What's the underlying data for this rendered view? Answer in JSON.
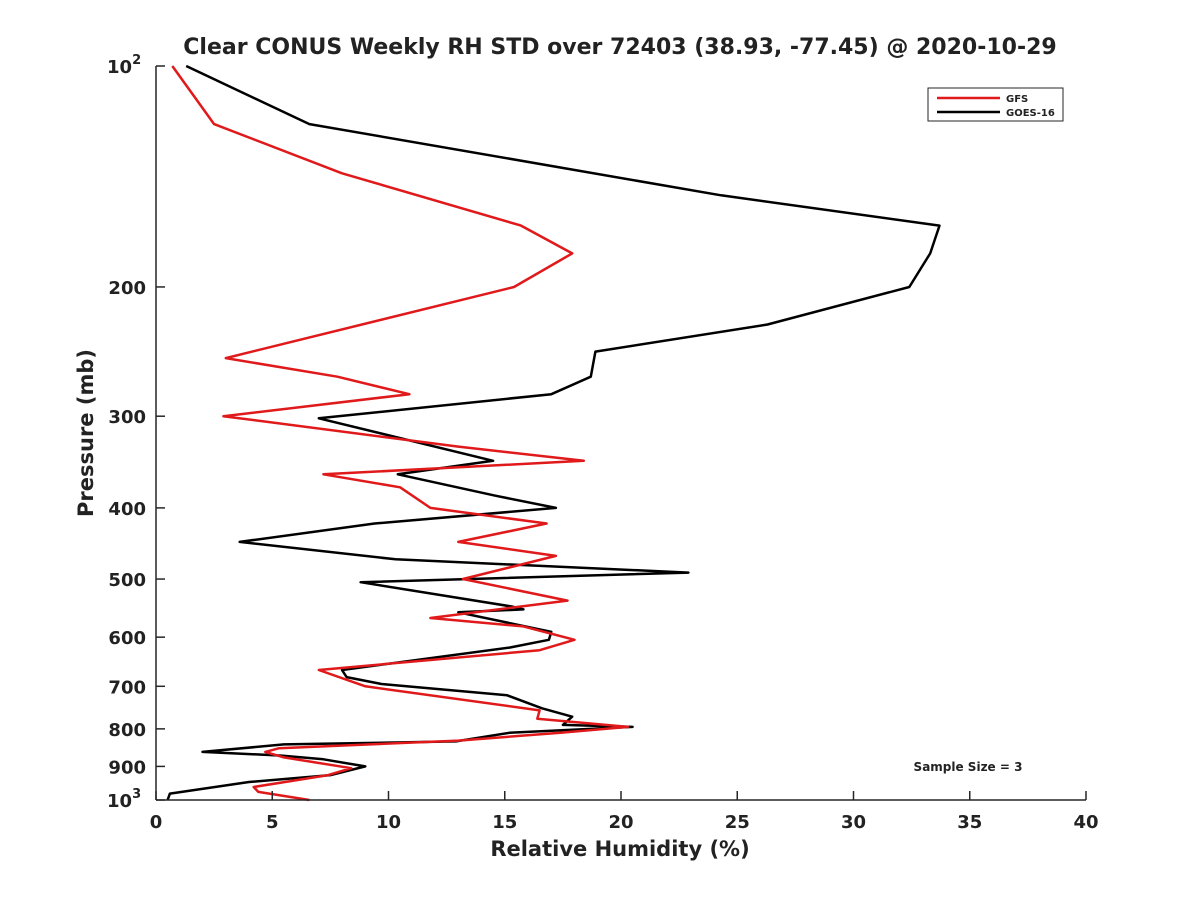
{
  "chart_data": {
    "type": "line",
    "title": "Clear CONUS Weekly RH STD over 72403 (38.93, -77.45) @ 2020-10-29",
    "xlabel": "Relative Humidity (%)",
    "ylabel": "Pressure (mb)",
    "xlim": [
      0,
      40
    ],
    "ylim": [
      100,
      1000
    ],
    "y_scale": "log",
    "y_reversed": true,
    "x_ticks": [
      "0",
      "5",
      "10",
      "15",
      "20",
      "25",
      "30",
      "35",
      "40"
    ],
    "x_tick_values": [
      0,
      5,
      10,
      15,
      20,
      25,
      30,
      35,
      40
    ],
    "y_tick_values": [
      100,
      200,
      300,
      400,
      500,
      600,
      700,
      800,
      900,
      1000
    ],
    "y_ticks": [
      "",
      "200",
      "300",
      "400",
      "500",
      "600",
      "700",
      "800",
      "900",
      ""
    ],
    "y_end_labels": [
      {
        "base": "10",
        "exp": "2"
      },
      {
        "base": "10",
        "exp": "3"
      }
    ],
    "grid": false,
    "legend_position": "top-right",
    "annotation": "Sample Size = 3",
    "series": [
      {
        "name": "GFS",
        "color": "#e0191b",
        "points": [
          [
            0.7,
            100
          ],
          [
            2.5,
            120
          ],
          [
            8,
            140
          ],
          [
            15.7,
            165
          ],
          [
            17.9,
            180
          ],
          [
            15.4,
            200
          ],
          [
            3,
            250
          ],
          [
            7.8,
            265
          ],
          [
            10.9,
            280
          ],
          [
            2.9,
            300
          ],
          [
            13,
            330
          ],
          [
            18.4,
            345
          ],
          [
            7.2,
            360
          ],
          [
            10.5,
            375
          ],
          [
            11.8,
            400
          ],
          [
            16.8,
            420
          ],
          [
            13,
            445
          ],
          [
            17.2,
            465
          ],
          [
            13.2,
            500
          ],
          [
            17.7,
            535
          ],
          [
            11.8,
            565
          ],
          [
            15.8,
            580
          ],
          [
            18,
            605
          ],
          [
            16.5,
            625
          ],
          [
            7,
            665
          ],
          [
            9,
            700
          ],
          [
            16.5,
            755
          ],
          [
            16.4,
            775
          ],
          [
            20.3,
            795
          ],
          [
            17.4,
            810
          ],
          [
            13,
            830
          ],
          [
            5.3,
            850
          ],
          [
            4.7,
            860
          ],
          [
            5.5,
            875
          ],
          [
            8.4,
            905
          ],
          [
            7.4,
            925
          ],
          [
            4.2,
            960
          ],
          [
            4.4,
            975
          ],
          [
            6.6,
            1000
          ]
        ]
      },
      {
        "name": "GOES-16",
        "color": "#000000",
        "points": [
          [
            1.3,
            100
          ],
          [
            6.6,
            120
          ],
          [
            24.3,
            150
          ],
          [
            33.7,
            165
          ],
          [
            33.3,
            180
          ],
          [
            32.4,
            200
          ],
          [
            26.3,
            225
          ],
          [
            18.9,
            245
          ],
          [
            18.7,
            265
          ],
          [
            17,
            280
          ],
          [
            7,
            302
          ],
          [
            14.5,
            345
          ],
          [
            10.4,
            360
          ],
          [
            14.6,
            385
          ],
          [
            17.2,
            400
          ],
          [
            9.4,
            420
          ],
          [
            3.6,
            445
          ],
          [
            10.3,
            470
          ],
          [
            22.9,
            490
          ],
          [
            8.8,
            505
          ],
          [
            15.3,
            545
          ],
          [
            15.8,
            550
          ],
          [
            13,
            555
          ],
          [
            17,
            590
          ],
          [
            16.9,
            605
          ],
          [
            15.2,
            620
          ],
          [
            8,
            665
          ],
          [
            8.2,
            680
          ],
          [
            9.7,
            695
          ],
          [
            15.1,
            720
          ],
          [
            16.6,
            750
          ],
          [
            17.9,
            770
          ],
          [
            17.5,
            790
          ],
          [
            20.5,
            795
          ],
          [
            15.2,
            810
          ],
          [
            12.9,
            832
          ],
          [
            5.5,
            840
          ],
          [
            2,
            860
          ],
          [
            5.4,
            870
          ],
          [
            7.2,
            880
          ],
          [
            9,
            900
          ],
          [
            7.5,
            925
          ],
          [
            4,
            945
          ],
          [
            0.6,
            980
          ],
          [
            0.5,
            1000
          ]
        ]
      }
    ]
  }
}
